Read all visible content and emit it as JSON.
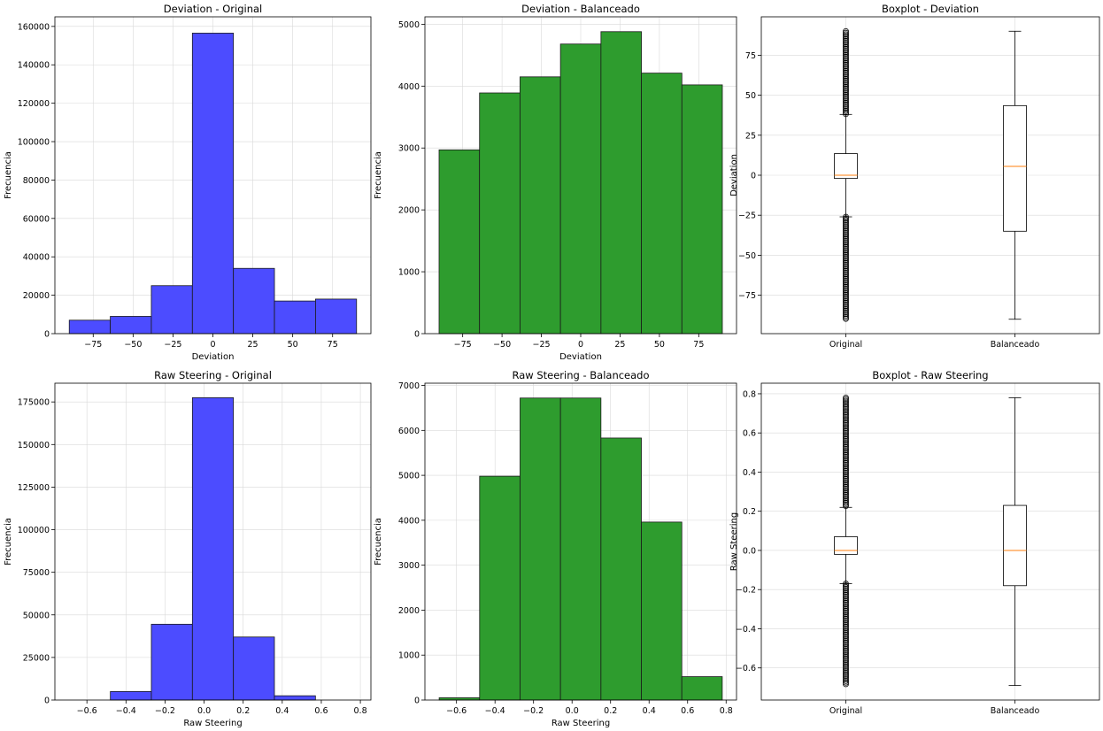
{
  "chart_data": [
    {
      "type": "bar",
      "subtype": "histogram",
      "title": "Deviation - Original",
      "xlabel": "Deviation",
      "ylabel": "Frecuencia",
      "color": "#4c4cff",
      "bin_edges": [
        -90,
        -64.29,
        -38.57,
        -12.86,
        12.86,
        38.57,
        64.29,
        90
      ],
      "values": [
        7000,
        9000,
        25000,
        156500,
        34000,
        17000,
        18000
      ],
      "xlim": [
        -99,
        99
      ],
      "ylim": [
        0,
        165000
      ],
      "xticks": [
        -75,
        -50,
        -25,
        0,
        25,
        50,
        75
      ],
      "xtick_labels": [
        "−75",
        "−50",
        "−25",
        "0",
        "25",
        "50",
        "75"
      ],
      "yticks": [
        0,
        20000,
        40000,
        60000,
        80000,
        100000,
        120000,
        140000,
        160000
      ],
      "ytick_labels": [
        "0",
        "20000",
        "40000",
        "60000",
        "80000",
        "100000",
        "120000",
        "140000",
        "160000"
      ],
      "grid": true
    },
    {
      "type": "bar",
      "subtype": "histogram",
      "title": "Deviation - Balanceado",
      "xlabel": "Deviation",
      "ylabel": "Frecuencia",
      "color": "#2e9c2e",
      "bin_edges": [
        -90,
        -64.29,
        -38.57,
        -12.86,
        12.86,
        38.57,
        64.29,
        90
      ],
      "values": [
        2970,
        3890,
        4150,
        4680,
        4880,
        4210,
        4020
      ],
      "xlim": [
        -99,
        99
      ],
      "ylim": [
        0,
        5120
      ],
      "xticks": [
        -75,
        -50,
        -25,
        0,
        25,
        50,
        75
      ],
      "xtick_labels": [
        "−75",
        "−50",
        "−25",
        "0",
        "25",
        "50",
        "75"
      ],
      "yticks": [
        0,
        1000,
        2000,
        3000,
        4000,
        5000
      ],
      "ytick_labels": [
        "0",
        "1000",
        "2000",
        "3000",
        "4000",
        "5000"
      ],
      "grid": true
    },
    {
      "type": "boxplot",
      "title": "Boxplot - Deviation",
      "ylabel": "Deviation",
      "categories": [
        "Original",
        "Balanceado"
      ],
      "boxes": [
        {
          "whisker_low": -26,
          "q1": -2,
          "median": 0,
          "q3": 13.5,
          "whisker_high": 38,
          "fliers_low": [
            -90,
            -26
          ],
          "fliers_high": [
            38,
            90
          ]
        },
        {
          "whisker_low": -90,
          "q1": -35,
          "median": 5.5,
          "q3": 43.5,
          "whisker_high": 90
        }
      ],
      "ylim": [
        -99,
        99
      ],
      "yticks": [
        -75,
        -50,
        -25,
        0,
        25,
        50,
        75
      ],
      "ytick_labels": [
        "−75",
        "−50",
        "−25",
        "0",
        "25",
        "50",
        "75"
      ],
      "grid": true
    },
    {
      "type": "bar",
      "subtype": "histogram",
      "title": "Raw Steering - Original",
      "xlabel": "Raw Steering",
      "ylabel": "Frecuencia",
      "color": "#4c4cff",
      "bin_edges": [
        -0.69,
        -0.48,
        -0.27,
        -0.06,
        0.15,
        0.36,
        0.57,
        0.78
      ],
      "values": [
        0,
        5000,
        44500,
        177500,
        37000,
        2500,
        0
      ],
      "xlim": [
        -0.764,
        0.854
      ],
      "ylim": [
        0,
        186000
      ],
      "xticks": [
        -0.6,
        -0.4,
        -0.2,
        0.0,
        0.2,
        0.4,
        0.6,
        0.8
      ],
      "xtick_labels": [
        "−0.6",
        "−0.4",
        "−0.2",
        "0.0",
        "0.2",
        "0.4",
        "0.6",
        "0.8"
      ],
      "yticks": [
        0,
        25000,
        50000,
        75000,
        100000,
        125000,
        150000,
        175000
      ],
      "ytick_labels": [
        "0",
        "25000",
        "50000",
        "75000",
        "100000",
        "125000",
        "150000",
        "175000"
      ],
      "grid": true
    },
    {
      "type": "bar",
      "subtype": "histogram",
      "title": "Raw Steering - Balanceado",
      "xlabel": "Raw Steering",
      "ylabel": "Frecuencia",
      "color": "#2e9c2e",
      "bin_edges": [
        -0.69,
        -0.48,
        -0.27,
        -0.06,
        0.15,
        0.36,
        0.57,
        0.78
      ],
      "values": [
        50,
        4980,
        6720,
        6720,
        5830,
        3960,
        520
      ],
      "xlim": [
        -0.764,
        0.854
      ],
      "ylim": [
        0,
        7050
      ],
      "xticks": [
        -0.6,
        -0.4,
        -0.2,
        0.0,
        0.2,
        0.4,
        0.6,
        0.8
      ],
      "xtick_labels": [
        "−0.6",
        "−0.4",
        "−0.2",
        "0.0",
        "0.2",
        "0.4",
        "0.6",
        "0.8"
      ],
      "yticks": [
        0,
        1000,
        2000,
        3000,
        4000,
        5000,
        6000,
        7000
      ],
      "ytick_labels": [
        "0",
        "1000",
        "2000",
        "3000",
        "4000",
        "5000",
        "6000",
        "7000"
      ],
      "grid": true
    },
    {
      "type": "boxplot",
      "title": "Boxplot - Raw Steering",
      "ylabel": "Raw Steering",
      "categories": [
        "Original",
        "Balanceado"
      ],
      "boxes": [
        {
          "whisker_low": -0.17,
          "q1": -0.02,
          "median": 0.0,
          "q3": 0.07,
          "whisker_high": 0.22,
          "fliers_low": [
            -0.69,
            -0.17
          ],
          "fliers_high": [
            0.22,
            0.78
          ]
        },
        {
          "whisker_low": -0.69,
          "q1": -0.18,
          "median": 0.0,
          "q3": 0.23,
          "whisker_high": 0.78
        }
      ],
      "ylim": [
        -0.764,
        0.854
      ],
      "yticks": [
        -0.6,
        -0.4,
        -0.2,
        0.0,
        0.2,
        0.4,
        0.6,
        0.8
      ],
      "ytick_labels": [
        "−0.6",
        "−0.4",
        "−0.2",
        "0.0",
        "0.2",
        "0.4",
        "0.6",
        "0.8"
      ],
      "grid": true
    }
  ]
}
